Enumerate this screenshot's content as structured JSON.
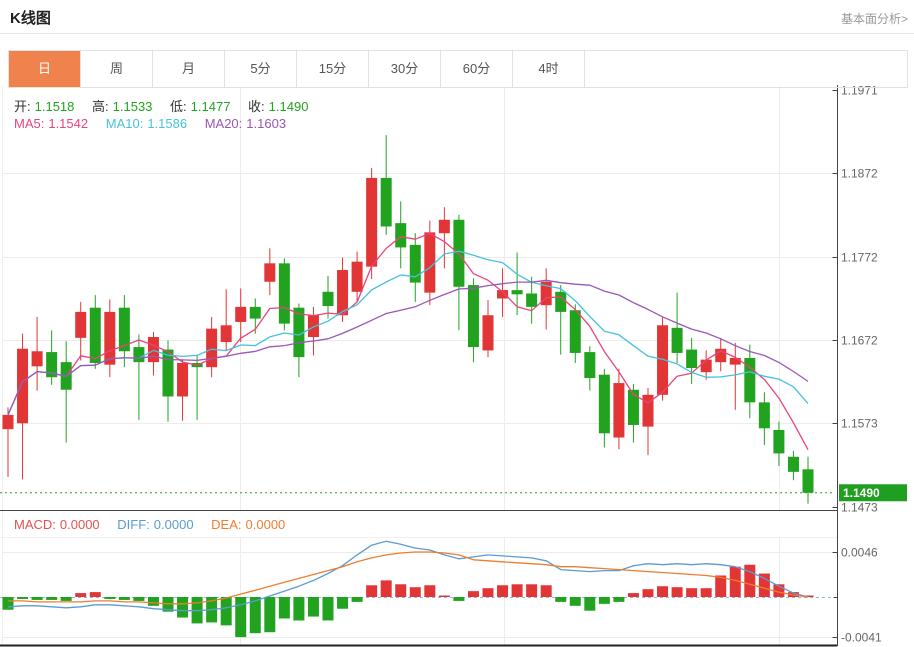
{
  "header": {
    "title": "K线图",
    "link": "基本面分析>"
  },
  "tabs": {
    "items": [
      {
        "label": "日",
        "active": true
      },
      {
        "label": "周",
        "active": false
      },
      {
        "label": "月",
        "active": false
      },
      {
        "label": "5分",
        "active": false
      },
      {
        "label": "15分",
        "active": false
      },
      {
        "label": "30分",
        "active": false
      },
      {
        "label": "60分",
        "active": false
      },
      {
        "label": "4时",
        "active": false
      }
    ]
  },
  "ohlc_legend": {
    "open_label": "开:",
    "open_value": "1.1518",
    "high_label": "高:",
    "high_value": "1.1533",
    "low_label": "低:",
    "low_value": "1.1477",
    "close_label": "收:",
    "close_value": "1.1490"
  },
  "ma_legend": {
    "ma5_label": "MA5:",
    "ma5_value": "1.1542",
    "ma10_label": "MA10:",
    "ma10_value": "1.1586",
    "ma20_label": "MA20:",
    "ma20_value": "1.1603"
  },
  "macd_legend": {
    "macd_label": "MACD:",
    "macd_value": "0.0000",
    "diff_label": "DIFF:",
    "diff_value": "0.0000",
    "dea_label": "DEA:",
    "dea_value": "0.0000"
  },
  "y_axis": {
    "labels": [
      "1.1971",
      "1.1872",
      "1.1772",
      "1.1672",
      "1.1573",
      "1.1473"
    ],
    "price_tag": "1.1490"
  },
  "macd_axis": {
    "labels": [
      "0.0046",
      "-0.0041"
    ]
  },
  "colors": {
    "up": "#e23535",
    "down": "#21a31f",
    "ma5": "#e8447c",
    "ma10": "#45c2dc",
    "ma20": "#9a57b5",
    "diff_line": "#5b9bd5",
    "dea_line": "#ee7d30",
    "macd_label": "#e45050",
    "accent_tab": "#f0824e",
    "price_tag_bg": "#1f9e1f",
    "grid": "#ececec",
    "axis": "#444",
    "last_price_line": "#28a428",
    "macd_zero_line": "#8fb8d8",
    "value_green": "#21a31f"
  },
  "chart_data": {
    "type": "candlestick",
    "title": "K线图",
    "legend_entries": [
      "MA5",
      "MA10",
      "MA20",
      "MACD",
      "DIFF",
      "DEA"
    ],
    "price_axis_ticks": [
      1.1971,
      1.1872,
      1.1772,
      1.1672,
      1.1573,
      1.1473
    ],
    "price_ylim": [
      1.1473,
      1.1971
    ],
    "last_close": 1.149,
    "latest": {
      "open": 1.1518,
      "high": 1.1533,
      "low": 1.1477,
      "close": 1.149,
      "ma5": 1.1542,
      "ma10": 1.1586,
      "ma20": 1.1603
    },
    "ma_periods": [
      5,
      10,
      20
    ],
    "grid": true,
    "candles": [
      [
        1.1566,
        1.1592,
        1.1509,
        1.1583
      ],
      [
        1.1573,
        1.168,
        1.1506,
        1.1662
      ],
      [
        1.1641,
        1.17,
        1.1612,
        1.1659
      ],
      [
        1.1658,
        1.1684,
        1.1619,
        1.1628
      ],
      [
        1.1646,
        1.1671,
        1.155,
        1.1613
      ],
      [
        1.1675,
        1.1718,
        1.1648,
        1.1706
      ],
      [
        1.1711,
        1.1726,
        1.1638,
        1.1645
      ],
      [
        1.1643,
        1.1721,
        1.1628,
        1.1706
      ],
      [
        1.1711,
        1.1726,
        1.164,
        1.1659
      ],
      [
        1.1664,
        1.1679,
        1.1577,
        1.1646
      ],
      [
        1.1646,
        1.1682,
        1.163,
        1.1676
      ],
      [
        1.1661,
        1.1672,
        1.1575,
        1.1605
      ],
      [
        1.1605,
        1.1648,
        1.1576,
        1.1645
      ],
      [
        1.1645,
        1.1655,
        1.1577,
        1.164
      ],
      [
        1.164,
        1.17,
        1.1628,
        1.1686
      ],
      [
        1.167,
        1.1733,
        1.166,
        1.169
      ],
      [
        1.1694,
        1.1734,
        1.167,
        1.1712
      ],
      [
        1.1712,
        1.1722,
        1.168,
        1.1698
      ],
      [
        1.1742,
        1.1782,
        1.1726,
        1.1764
      ],
      [
        1.1764,
        1.177,
        1.1684,
        1.1692
      ],
      [
        1.1711,
        1.1716,
        1.1628,
        1.1652
      ],
      [
        1.1676,
        1.1712,
        1.1654,
        1.1702
      ],
      [
        1.173,
        1.1749,
        1.1698,
        1.1713
      ],
      [
        1.1702,
        1.1771,
        1.1694,
        1.1756
      ],
      [
        1.173,
        1.1778,
        1.1718,
        1.1766
      ],
      [
        1.176,
        1.1878,
        1.1745,
        1.1866
      ],
      [
        1.1866,
        1.1917,
        1.1798,
        1.1808
      ],
      [
        1.1812,
        1.1838,
        1.1758,
        1.1783
      ],
      [
        1.1786,
        1.18,
        1.1718,
        1.1741
      ],
      [
        1.1729,
        1.1815,
        1.1714,
        1.1801
      ],
      [
        1.18,
        1.1831,
        1.1758,
        1.1816
      ],
      [
        1.1816,
        1.1822,
        1.1684,
        1.1736
      ],
      [
        1.1738,
        1.1746,
        1.1646,
        1.1664
      ],
      [
        1.166,
        1.172,
        1.1652,
        1.1702
      ],
      [
        1.1722,
        1.1758,
        1.17,
        1.1732
      ],
      [
        1.1732,
        1.1777,
        1.1702,
        1.1727
      ],
      [
        1.1728,
        1.1748,
        1.1692,
        1.1712
      ],
      [
        1.1714,
        1.1758,
        1.1685,
        1.1742
      ],
      [
        1.173,
        1.1738,
        1.1655,
        1.1706
      ],
      [
        1.1708,
        1.1715,
        1.1645,
        1.1657
      ],
      [
        1.1658,
        1.1665,
        1.1612,
        1.1627
      ],
      [
        1.1631,
        1.1638,
        1.1544,
        1.1561
      ],
      [
        1.1556,
        1.1638,
        1.1542,
        1.1621
      ],
      [
        1.1613,
        1.162,
        1.155,
        1.1571
      ],
      [
        1.1569,
        1.1615,
        1.1535,
        1.1607
      ],
      [
        1.1607,
        1.17,
        1.16,
        1.169
      ],
      [
        1.1687,
        1.1729,
        1.1645,
        1.1657
      ],
      [
        1.1661,
        1.1675,
        1.162,
        1.1639
      ],
      [
        1.1634,
        1.166,
        1.1625,
        1.1649
      ],
      [
        1.1646,
        1.1675,
        1.1635,
        1.1662
      ],
      [
        1.1643,
        1.1669,
        1.1589,
        1.1651
      ],
      [
        1.1651,
        1.1667,
        1.1579,
        1.1598
      ],
      [
        1.1598,
        1.161,
        1.1547,
        1.1567
      ],
      [
        1.1565,
        1.1575,
        1.1522,
        1.1537
      ],
      [
        1.1533,
        1.154,
        1.1505,
        1.1515
      ],
      [
        1.1518,
        1.1533,
        1.1477,
        1.149
      ]
    ],
    "macd_panel": {
      "ticks": [
        0.0046,
        -0.0041
      ],
      "zero_line": 0.0,
      "diff": [
        -0.001,
        -0.0009,
        -0.0009,
        -0.001,
        -0.0011,
        -0.001,
        -0.0008,
        -0.0008,
        -0.0009,
        -0.001,
        -0.0012,
        -0.0013,
        -0.0014,
        -0.0014,
        -0.0013,
        -0.0011,
        -0.0008,
        -0.0004,
        0.0001,
        0.0006,
        0.0011,
        0.0017,
        0.0024,
        0.0032,
        0.0043,
        0.0053,
        0.0057,
        0.0054,
        0.005,
        0.0048,
        0.0043,
        0.0039,
        0.0041,
        0.0043,
        0.0042,
        0.0041,
        0.004,
        0.0037,
        0.0028,
        0.0027,
        0.0026,
        0.0027,
        0.0027,
        0.0032,
        0.0034,
        0.0033,
        0.0034,
        0.0033,
        0.0034,
        0.0033,
        0.0031,
        0.0026,
        0.0019,
        0.0011,
        0.0004,
        0.0
      ],
      "dea": [
        -0.0004,
        -0.0004,
        -0.0005,
        -0.0005,
        -0.0005,
        -0.0005,
        -0.0004,
        -0.0004,
        -0.0005,
        -0.0005,
        -0.0006,
        -0.0007,
        -0.0007,
        -0.0006,
        -0.0004,
        -0.0001,
        0.0003,
        0.0007,
        0.0011,
        0.0015,
        0.0019,
        0.0023,
        0.0027,
        0.0031,
        0.0036,
        0.004,
        0.0043,
        0.0045,
        0.0046,
        0.0046,
        0.0045,
        0.0043,
        0.0038,
        0.0037,
        0.0036,
        0.0035,
        0.0034,
        0.0033,
        0.0031,
        0.0031,
        0.003,
        0.0029,
        0.0028,
        0.0027,
        0.0026,
        0.0025,
        0.0024,
        0.0023,
        0.0022,
        0.002,
        0.0017,
        0.0013,
        0.0009,
        0.0005,
        0.0002,
        0.0
      ],
      "histogram": [
        -0.0013,
        -0.0002,
        -0.0003,
        -0.0003,
        -0.0004,
        0.0004,
        0.0005,
        -0.0002,
        -0.0003,
        -0.0004,
        -0.0009,
        -0.0015,
        -0.0021,
        -0.0027,
        -0.0026,
        -0.0029,
        -0.0041,
        -0.0037,
        -0.0036,
        -0.0022,
        -0.0024,
        -0.002,
        -0.0024,
        -0.0012,
        -0.0005,
        0.0012,
        0.0017,
        0.0013,
        0.001,
        0.0012,
        0.0,
        -0.0004,
        0.0006,
        0.0009,
        0.0012,
        0.0013,
        0.0013,
        0.0012,
        -0.0005,
        -0.0009,
        -0.0014,
        -0.0007,
        -0.0005,
        0.0004,
        0.0008,
        0.0011,
        0.001,
        0.0009,
        0.0009,
        0.0022,
        0.0031,
        0.0033,
        0.0024,
        0.0013,
        0.0005,
        0.0001
      ]
    }
  }
}
